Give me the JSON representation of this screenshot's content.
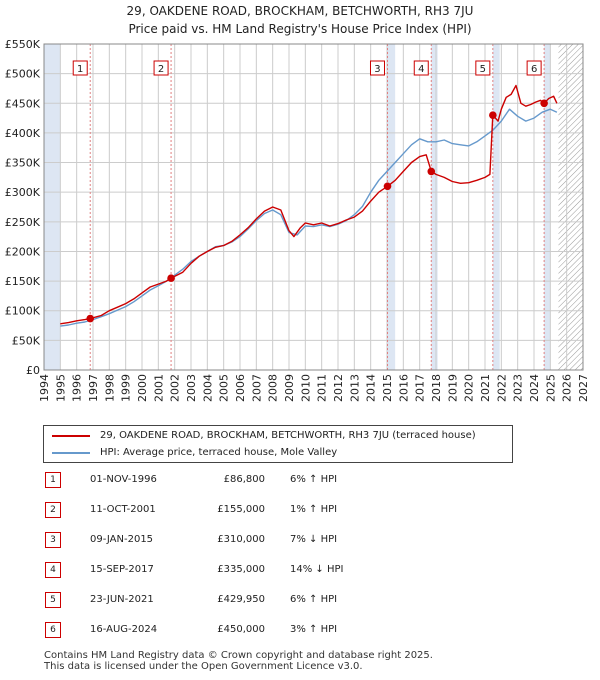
{
  "title_line1": "29, OAKDENE ROAD, BROCKHAM, BETCHWORTH, RH3 7JU",
  "title_line2": "Price paid vs. HM Land Registry's House Price Index (HPI)",
  "colors": {
    "property": "#cc0000",
    "hpi": "#6699cc",
    "shade": "#dde6f3",
    "grid": "#cccccc",
    "marker_line": "#e08080"
  },
  "chart_data": {
    "type": "line",
    "xlim": [
      1994,
      2027
    ],
    "ylim": [
      0,
      550000
    ],
    "yticks": [
      0,
      50000,
      100000,
      150000,
      200000,
      250000,
      300000,
      350000,
      400000,
      450000,
      500000,
      550000
    ],
    "ytick_labels": [
      "£0",
      "£50K",
      "£100K",
      "£150K",
      "£200K",
      "£250K",
      "£300K",
      "£350K",
      "£400K",
      "£450K",
      "£500K",
      "£550K"
    ],
    "xticks": [
      1994,
      1995,
      1996,
      1997,
      1998,
      1999,
      2000,
      2001,
      2002,
      2003,
      2004,
      2005,
      2006,
      2007,
      2008,
      2009,
      2010,
      2011,
      2012,
      2013,
      2014,
      2015,
      2016,
      2017,
      2018,
      2019,
      2020,
      2021,
      2022,
      2023,
      2024,
      2025,
      2026,
      2027
    ],
    "shaded_range": [
      1994,
      1995
    ],
    "hatched_range": [
      2025.5,
      2027
    ],
    "series": [
      {
        "name": "29, OAKDENE ROAD, BROCKHAM, BETCHWORTH, RH3 7JU (terraced house)",
        "x": [
          1995.0,
          1995.5,
          1996.0,
          1996.5,
          1996.83,
          1997.5,
          1998.0,
          1998.5,
          1999.0,
          1999.5,
          2000.0,
          2000.5,
          2001.0,
          2001.5,
          2001.78,
          2002.5,
          2003.0,
          2003.5,
          2004.0,
          2004.5,
          2005.0,
          2005.5,
          2006.0,
          2006.5,
          2007.0,
          2007.5,
          2008.0,
          2008.5,
          2009.0,
          2009.3,
          2009.7,
          2010.0,
          2010.5,
          2011.0,
          2011.5,
          2012.0,
          2012.5,
          2013.0,
          2013.5,
          2014.0,
          2014.5,
          2015.03,
          2015.5,
          2016.0,
          2016.5,
          2017.0,
          2017.4,
          2017.71,
          2018.0,
          2018.5,
          2019.0,
          2019.5,
          2020.0,
          2020.5,
          2021.0,
          2021.3,
          2021.48,
          2021.8,
          2022.0,
          2022.3,
          2022.6,
          2022.9,
          2023.2,
          2023.5,
          2023.8,
          2024.1,
          2024.4,
          2024.62,
          2024.9,
          2025.2,
          2025.4
        ],
        "values": [
          78000,
          80000,
          83000,
          85000,
          86800,
          92000,
          100000,
          106000,
          112000,
          120000,
          130000,
          140000,
          145000,
          150000,
          155000,
          165000,
          180000,
          192000,
          200000,
          207000,
          210000,
          217000,
          228000,
          240000,
          255000,
          268000,
          275000,
          270000,
          235000,
          225000,
          240000,
          248000,
          245000,
          248000,
          243000,
          247000,
          253000,
          258000,
          268000,
          285000,
          300000,
          310000,
          320000,
          335000,
          350000,
          360000,
          363000,
          335000,
          330000,
          325000,
          318000,
          315000,
          316000,
          320000,
          325000,
          330000,
          429950,
          420000,
          440000,
          460000,
          465000,
          480000,
          450000,
          445000,
          448000,
          452000,
          455000,
          450000,
          458000,
          462000,
          450000
        ]
      },
      {
        "name": "HPI: Average price, terraced house, Mole Valley",
        "x": [
          1995.0,
          1995.5,
          1996.0,
          1996.5,
          1997.0,
          1997.5,
          1998.0,
          1998.5,
          1999.0,
          1999.5,
          2000.0,
          2000.5,
          2001.0,
          2001.5,
          2002.0,
          2002.5,
          2003.0,
          2003.5,
          2004.0,
          2004.5,
          2005.0,
          2005.5,
          2006.0,
          2006.5,
          2007.0,
          2007.5,
          2008.0,
          2008.5,
          2009.0,
          2009.5,
          2010.0,
          2010.5,
          2011.0,
          2011.5,
          2012.0,
          2012.5,
          2013.0,
          2013.5,
          2014.0,
          2014.5,
          2015.0,
          2015.5,
          2016.0,
          2016.5,
          2017.0,
          2017.5,
          2018.0,
          2018.5,
          2019.0,
          2019.5,
          2020.0,
          2020.5,
          2021.0,
          2021.5,
          2022.0,
          2022.5,
          2023.0,
          2023.5,
          2024.0,
          2024.5,
          2025.0,
          2025.4
        ],
        "values": [
          74000,
          76000,
          79000,
          81000,
          85000,
          90000,
          95000,
          101000,
          107000,
          115000,
          125000,
          135000,
          142000,
          150000,
          160000,
          170000,
          183000,
          192000,
          200000,
          208000,
          210000,
          216000,
          225000,
          238000,
          252000,
          264000,
          270000,
          262000,
          232000,
          228000,
          243000,
          242000,
          245000,
          242000,
          246000,
          252000,
          262000,
          276000,
          300000,
          320000,
          335000,
          350000,
          365000,
          380000,
          390000,
          385000,
          385000,
          388000,
          382000,
          380000,
          378000,
          385000,
          395000,
          405000,
          420000,
          440000,
          428000,
          420000,
          425000,
          435000,
          440000,
          435000
        ]
      }
    ],
    "sales": [
      {
        "num": "1",
        "year": 1996.83,
        "price": 86800
      },
      {
        "num": "2",
        "year": 2001.78,
        "price": 155000
      },
      {
        "num": "3",
        "year": 2015.03,
        "price": 310000
      },
      {
        "num": "4",
        "year": 2017.71,
        "price": 335000
      },
      {
        "num": "5",
        "year": 2021.48,
        "price": 429950
      },
      {
        "num": "6",
        "year": 2024.62,
        "price": 450000
      }
    ]
  },
  "legend": {
    "property": "29, OAKDENE ROAD, BROCKHAM, BETCHWORTH, RH3 7JU (terraced house)",
    "hpi": "HPI: Average price, terraced house, Mole Valley"
  },
  "sales_table": [
    {
      "num": "1",
      "date": "01-NOV-1996",
      "price": "£86,800",
      "hpi": "6% ↑ HPI"
    },
    {
      "num": "2",
      "date": "11-OCT-2001",
      "price": "£155,000",
      "hpi": "1% ↑ HPI"
    },
    {
      "num": "3",
      "date": "09-JAN-2015",
      "price": "£310,000",
      "hpi": "7% ↓ HPI"
    },
    {
      "num": "4",
      "date": "15-SEP-2017",
      "price": "£335,000",
      "hpi": "14% ↓ HPI"
    },
    {
      "num": "5",
      "date": "23-JUN-2021",
      "price": "£429,950",
      "hpi": "6% ↑ HPI"
    },
    {
      "num": "6",
      "date": "16-AUG-2024",
      "price": "£450,000",
      "hpi": "3% ↑ HPI"
    }
  ],
  "footer_line1": "Contains HM Land Registry data © Crown copyright and database right 2025.",
  "footer_line2": "This data is licensed under the Open Government Licence v3.0."
}
